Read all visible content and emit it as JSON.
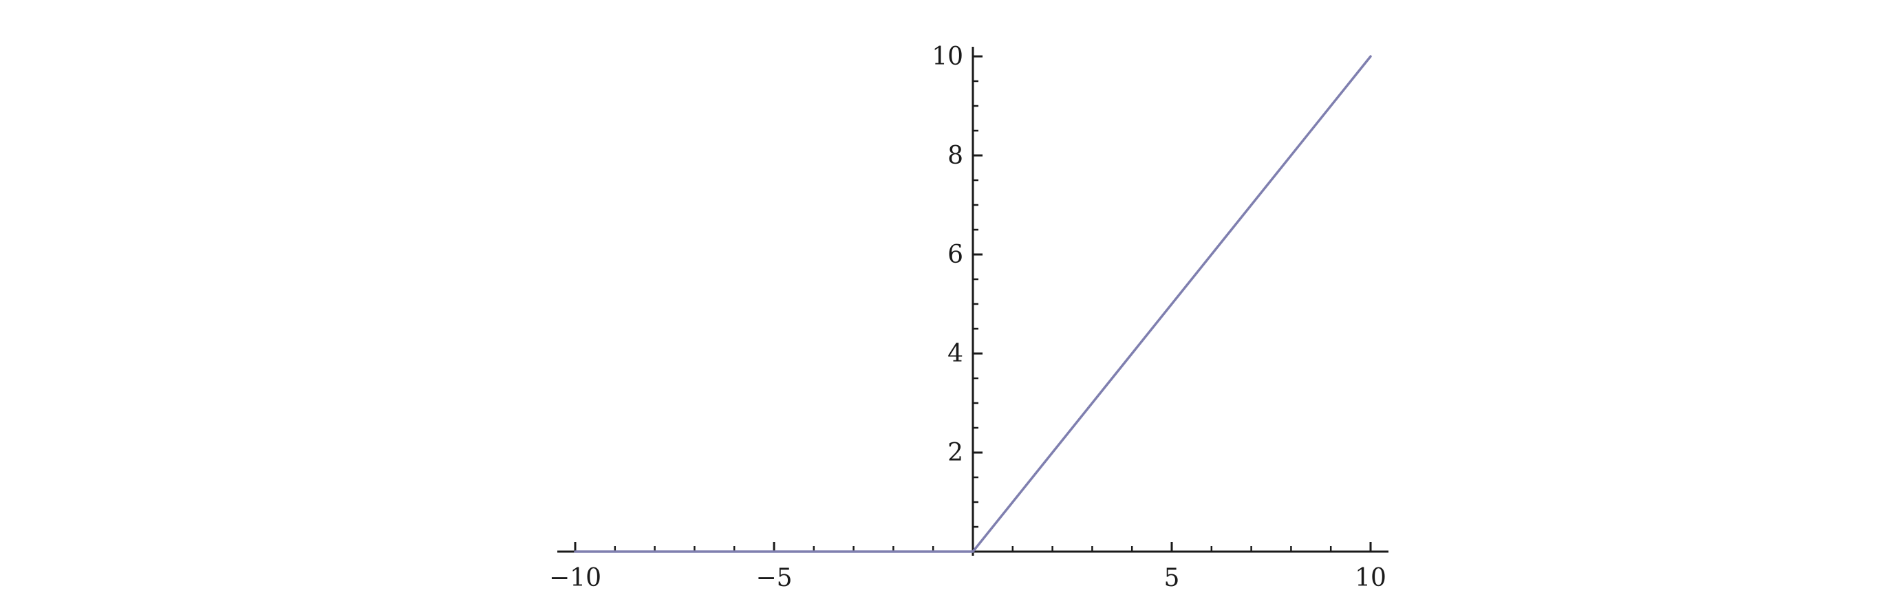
{
  "colors": {
    "series": "#7f7faf",
    "axis": "#1a1a1a"
  },
  "chart_data": {
    "type": "line",
    "title": "",
    "xlabel": "",
    "ylabel": "",
    "xlim": [
      -10,
      10
    ],
    "ylim": [
      0,
      10
    ],
    "grid": false,
    "x_ticks": [
      {
        "value": -10,
        "label": "−10"
      },
      {
        "value": -5,
        "label": "−5"
      },
      {
        "value": 5,
        "label": "5"
      },
      {
        "value": 10,
        "label": "10"
      }
    ],
    "y_ticks": [
      {
        "value": 2,
        "label": "2"
      },
      {
        "value": 4,
        "label": "4"
      },
      {
        "value": 6,
        "label": "6"
      },
      {
        "value": 8,
        "label": "8"
      },
      {
        "value": 10,
        "label": "10"
      }
    ],
    "series": [
      {
        "x": [
          -10,
          0,
          10
        ],
        "y": [
          0,
          0,
          10
        ]
      }
    ]
  }
}
